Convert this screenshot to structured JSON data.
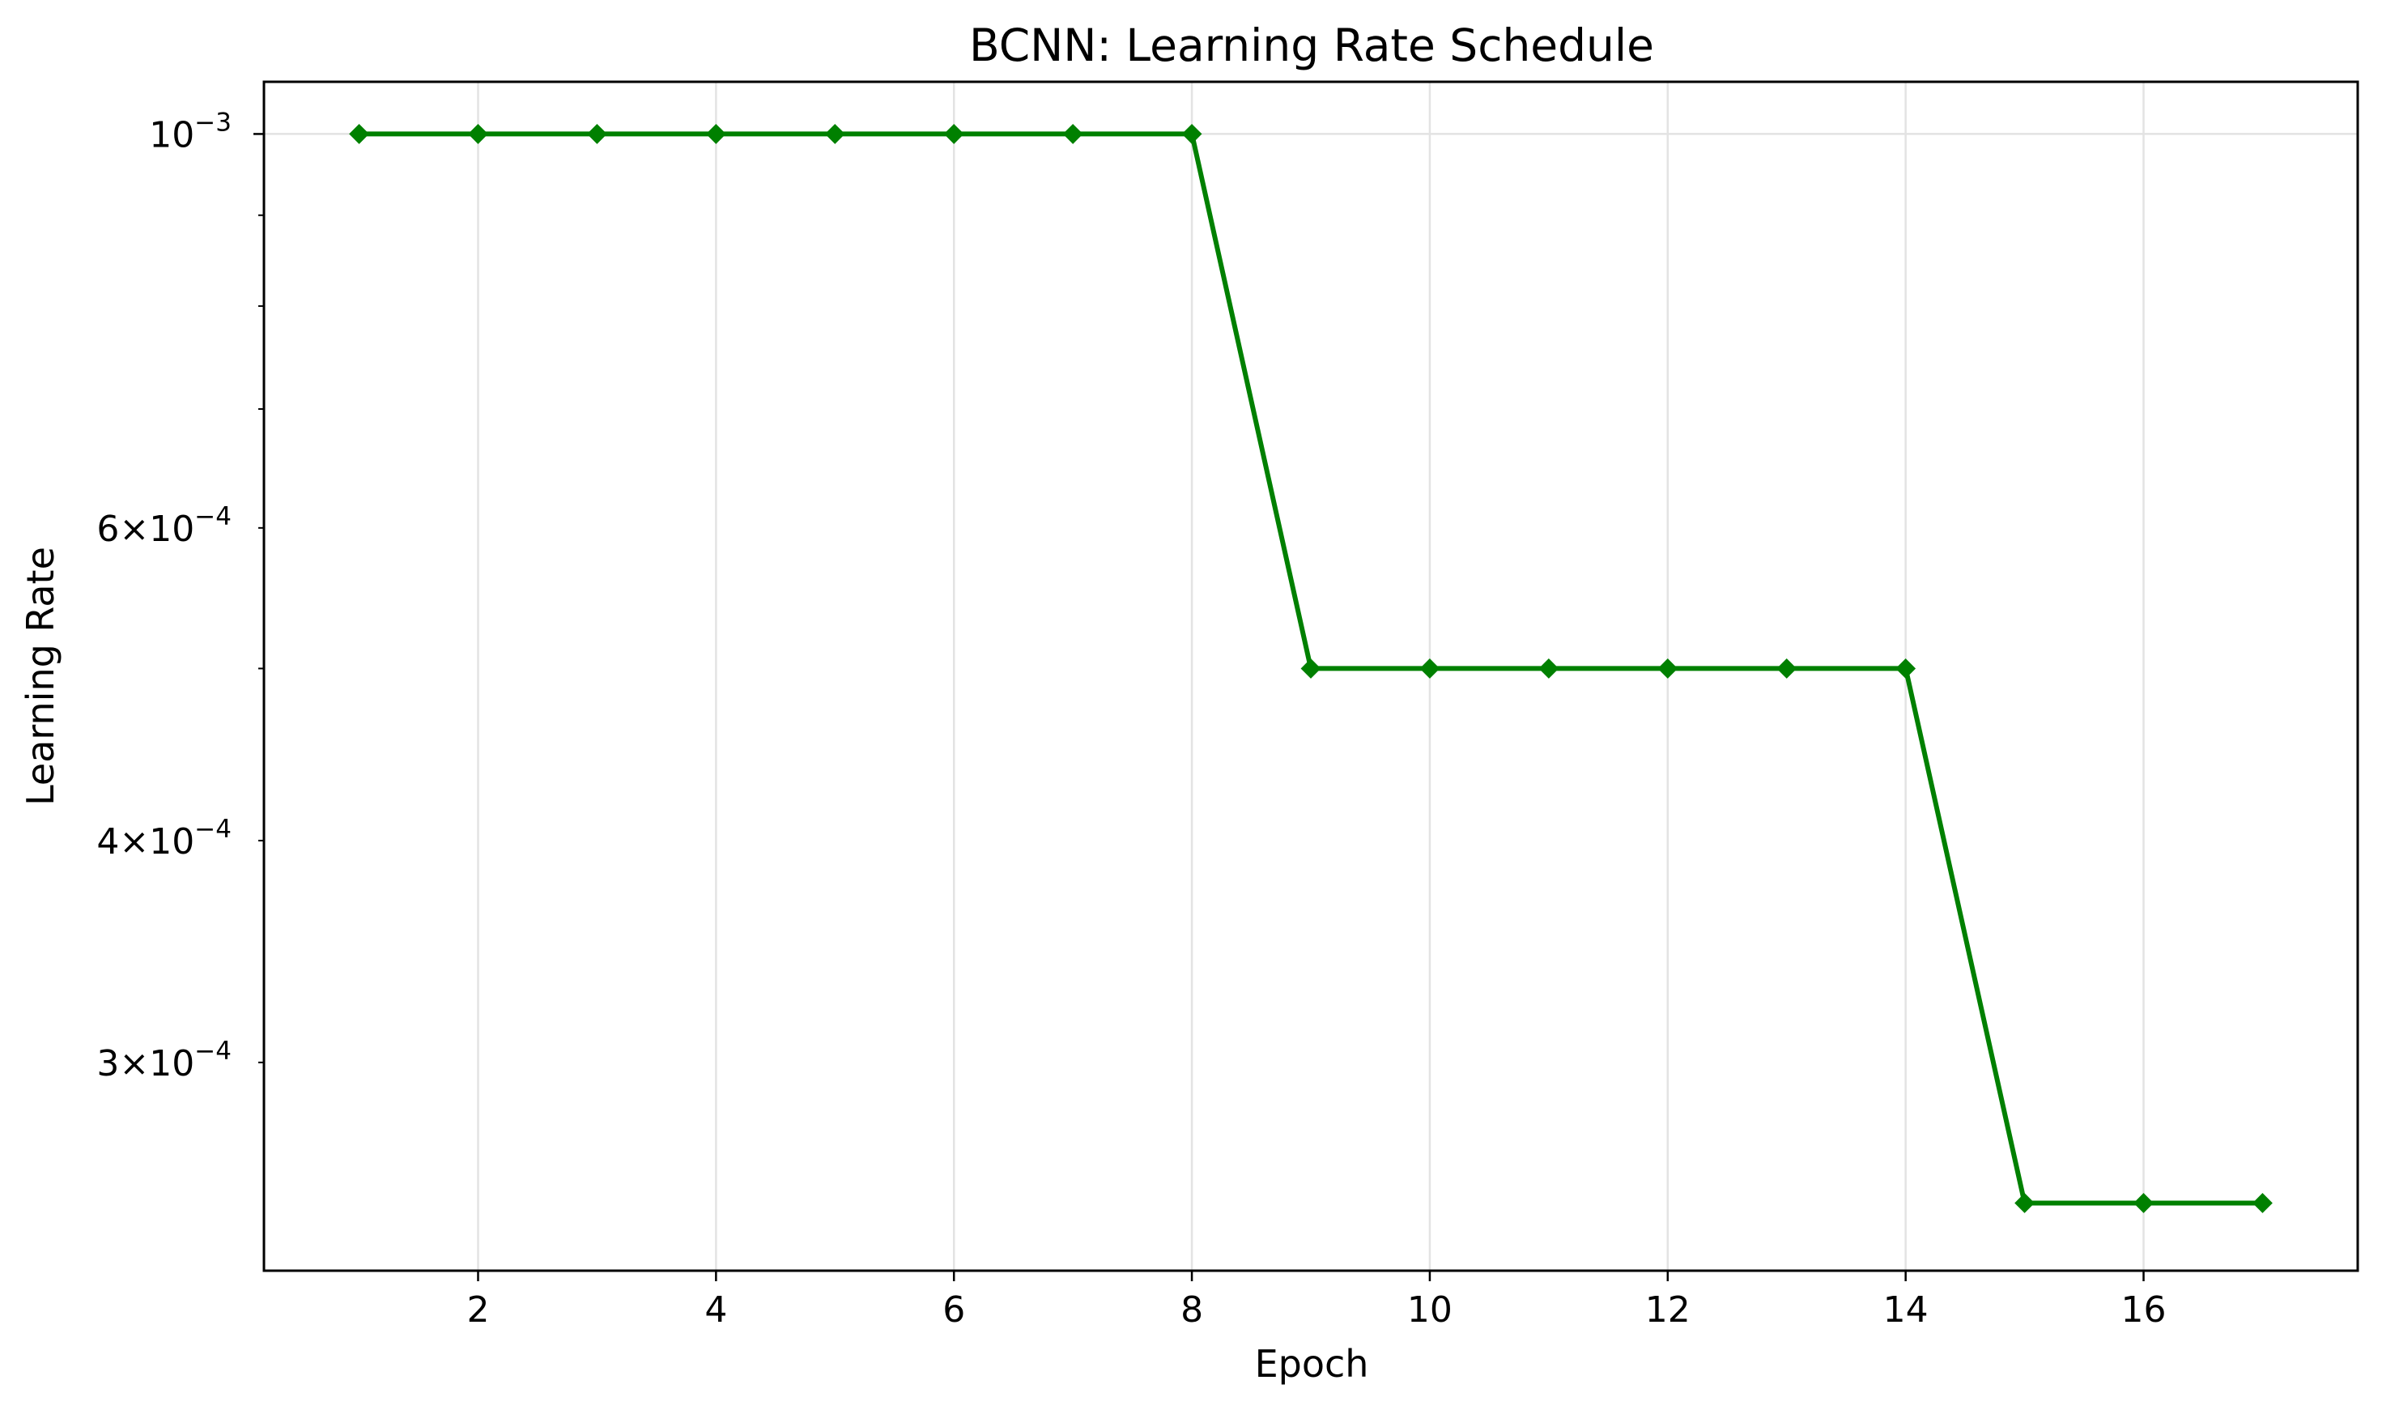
{
  "chart_data": {
    "type": "line",
    "title": "BCNN: Learning Rate Schedule",
    "xlabel": "Epoch",
    "ylabel": "Learning Rate",
    "yscale": "log",
    "grid": true,
    "legend": "none",
    "x": [
      1,
      2,
      3,
      4,
      5,
      6,
      7,
      8,
      9,
      10,
      11,
      12,
      13,
      14,
      15,
      16,
      17
    ],
    "series": [
      {
        "values": [
          0.001,
          0.001,
          0.001,
          0.001,
          0.001,
          0.001,
          0.001,
          0.001,
          0.0005,
          0.0005,
          0.0005,
          0.0005,
          0.0005,
          0.0005,
          0.00025,
          0.00025,
          0.00025
        ],
        "color": "#008000",
        "marker": "diamond"
      }
    ],
    "xlim": [
      0.2,
      17.8
    ],
    "ylim": [
      0.000229,
      0.00107
    ],
    "x_ticks": [
      {
        "value": 2,
        "label": "2"
      },
      {
        "value": 4,
        "label": "4"
      },
      {
        "value": 6,
        "label": "6"
      },
      {
        "value": 8,
        "label": "8"
      },
      {
        "value": 10,
        "label": "10"
      },
      {
        "value": 12,
        "label": "12"
      },
      {
        "value": 14,
        "label": "14"
      },
      {
        "value": 16,
        "label": "16"
      }
    ],
    "y_major_ticks": [
      {
        "value": 0.001,
        "mantissa": "",
        "base": "10",
        "exponent": "−3"
      }
    ],
    "y_minor_ticks": [
      {
        "value": 0.0003,
        "mantissa": "3",
        "base": "10",
        "exponent": "−4"
      },
      {
        "value": 0.0004,
        "mantissa": "4",
        "base": "10",
        "exponent": "−4"
      },
      {
        "value": 0.0005,
        "mantissa": "",
        "base": "",
        "exponent": ""
      },
      {
        "value": 0.0006,
        "mantissa": "6",
        "base": "10",
        "exponent": "−4"
      },
      {
        "value": 0.0007,
        "mantissa": "",
        "base": "",
        "exponent": ""
      },
      {
        "value": 0.0008,
        "mantissa": "",
        "base": "",
        "exponent": ""
      },
      {
        "value": 0.0009,
        "mantissa": "",
        "base": "",
        "exponent": ""
      }
    ]
  }
}
